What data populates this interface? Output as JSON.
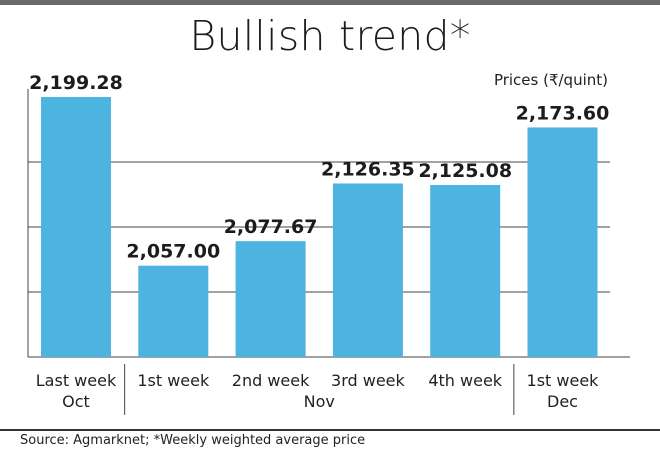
{
  "title": "Bullish trend*",
  "unit_label": "Prices (₹/quint)",
  "source": "Source: Agmarknet;   *Weekly weighted average price",
  "colors": {
    "bar": "#4db3e0",
    "grid": "#444444",
    "top_rule": "#6b6b6b"
  },
  "chart_data": {
    "type": "bar",
    "title": "Bullish trend*",
    "ylabel": "Prices (₹/quint)",
    "xlabel": "",
    "categories": [
      "Last week",
      "1st week",
      "2nd week",
      "3rd week",
      "4th week",
      "1st week"
    ],
    "groups": [
      "Oct",
      "Nov",
      "Nov",
      "Nov",
      "Nov",
      "Dec"
    ],
    "group_labels": [
      "Oct",
      "Nov",
      "Dec"
    ],
    "values": [
      2199.28,
      2057.0,
      2077.67,
      2126.35,
      2125.08,
      2173.6
    ],
    "value_labels": [
      "2,199.28",
      "2,057.00",
      "2,077.67",
      "2,126.35",
      "2,125.08",
      "2,173.60"
    ],
    "ylim": [
      1980,
      2199.28
    ],
    "grid": true,
    "legend": "none"
  }
}
